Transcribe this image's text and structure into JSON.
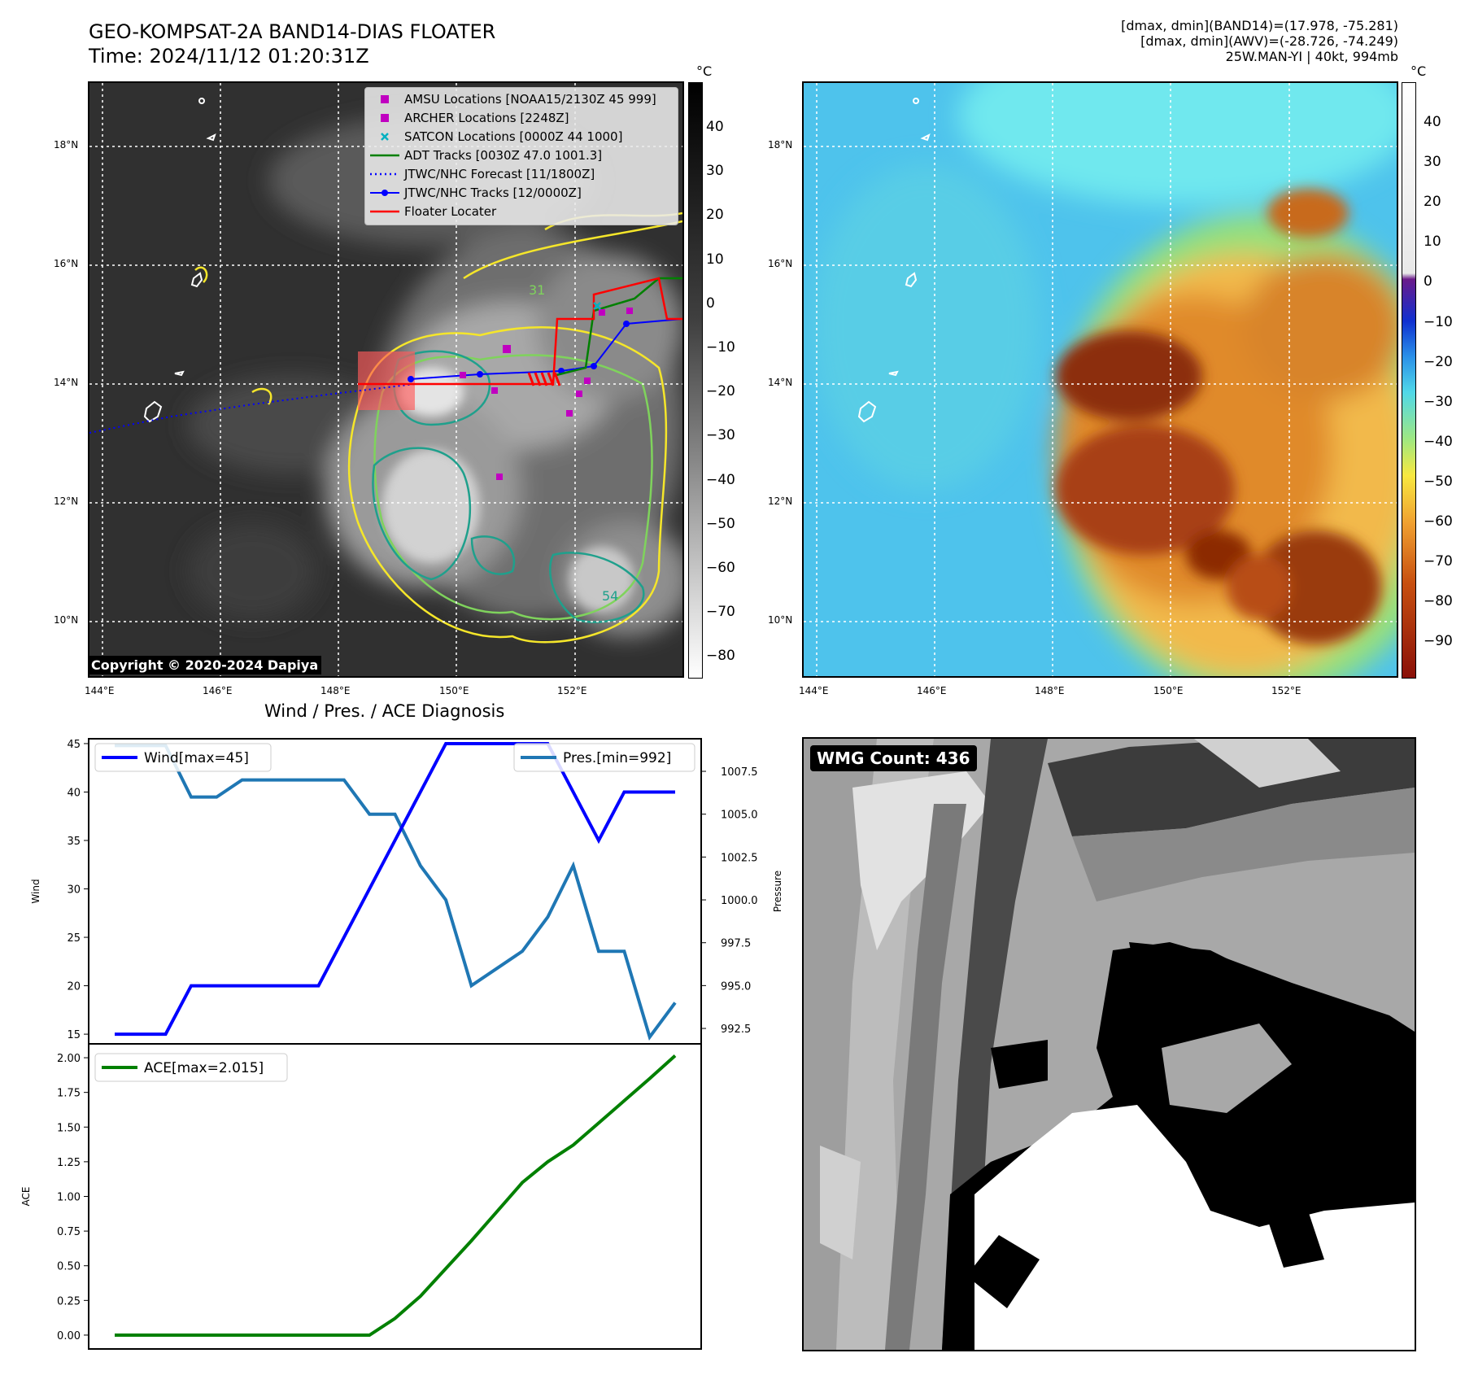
{
  "header": {
    "title_line1": "GEO-KOMPSAT-2A BAND14-DIAS FLOATER",
    "title_line2": "Time: 2024/11/12 01:20:31Z",
    "stats_line1": "[dmax, dmin](BAND14)=(17.978, -75.281)",
    "stats_line2": "[dmax, dmin](AWV)=(-28.726, -74.249)",
    "stats_line3": "25W.MAN-YI | 40kt, 994mb"
  },
  "map": {
    "lat_labels": [
      "18°N",
      "16°N",
      "14°N",
      "12°N",
      "10°N"
    ],
    "lon_labels": [
      "144°E",
      "146°E",
      "148°E",
      "150°E",
      "152°E"
    ],
    "copyright": "Copyright © 2020-2024 Dapiya",
    "contour_labels": [
      "31",
      "54"
    ],
    "legend": [
      {
        "label": "AMSU Locations [NOAA15/2130Z 45 999]",
        "color": "#c000c0",
        "symbol": "square"
      },
      {
        "label": "ARCHER Locations [2248Z]",
        "color": "#c000c0",
        "symbol": "square"
      },
      {
        "label": "SATCON Locations [0000Z 44 1000]",
        "color": "#00b0c0",
        "symbol": "x"
      },
      {
        "label": "ADT Tracks [0030Z 47.0 1001.3]",
        "color": "#008000",
        "symbol": "line"
      },
      {
        "label": "JTWC/NHC Forecast [11/1800Z]",
        "color": "#0000ff",
        "symbol": "dotted"
      },
      {
        "label": "JTWC/NHC Tracks [12/0000Z]",
        "color": "#0000ff",
        "symbol": "dotline"
      },
      {
        "label": "Floater Locater",
        "color": "#ff0000",
        "symbol": "line"
      }
    ]
  },
  "colorbar1": {
    "unit": "°C",
    "ticks": [
      "40",
      "30",
      "20",
      "10",
      "0",
      "−10",
      "−20",
      "−30",
      "−40",
      "−50",
      "−60",
      "−70",
      "−80"
    ]
  },
  "colorbar2": {
    "unit": "°C",
    "ticks": [
      "40",
      "30",
      "20",
      "10",
      "0",
      "−10",
      "−20",
      "−30",
      "−40",
      "−50",
      "−60",
      "−70",
      "−80",
      "−90"
    ]
  },
  "chart_data": [
    {
      "type": "line",
      "title": "Wind / Pres. / ACE Diagnosis",
      "ylabel": "Wind",
      "ylabel_right": "Pressure",
      "ylim": [
        14,
        45.5
      ],
      "ylim_right": [
        991.6,
        1009.4
      ],
      "yticks": [
        15,
        20,
        25,
        30,
        35,
        40,
        45
      ],
      "yticks_right": [
        "992.5",
        "995.0",
        "997.5",
        "1000.0",
        "1002.5",
        "1005.0",
        "1007.5"
      ],
      "x": [
        0,
        1,
        2,
        3,
        4,
        5,
        6,
        7,
        8,
        9,
        10,
        11,
        12,
        13,
        14,
        15,
        16,
        17,
        18,
        19,
        20,
        21,
        22
      ],
      "series": [
        {
          "name": "Wind[max=45]",
          "axis": "left",
          "color": "#0000ff",
          "values": [
            15,
            15,
            15,
            20,
            20,
            20,
            20,
            20,
            20,
            25,
            30,
            35,
            40,
            45,
            45,
            45,
            45,
            45,
            40,
            35,
            40,
            40,
            40
          ]
        },
        {
          "name": "Pres.[min=992]",
          "axis": "right",
          "color": "#1f77b4",
          "values": [
            1009,
            1009,
            1009,
            1006,
            1006,
            1007,
            1007,
            1007,
            1007,
            1007,
            1005,
            1005,
            1002,
            1000,
            995,
            996,
            997,
            999,
            1002,
            997,
            997,
            992,
            994
          ]
        }
      ]
    },
    {
      "type": "line",
      "ylabel": "ACE",
      "ylim": [
        -0.1,
        2.1
      ],
      "yticks": [
        "0.00",
        "0.25",
        "0.50",
        "0.75",
        "1.00",
        "1.25",
        "1.50",
        "1.75",
        "2.00"
      ],
      "x": [
        0,
        1,
        2,
        3,
        4,
        5,
        6,
        7,
        8,
        9,
        10,
        11,
        12,
        13,
        14,
        15,
        16,
        17,
        18,
        19,
        20,
        21,
        22
      ],
      "series": [
        {
          "name": "ACE[max=2.015]",
          "color": "#008000",
          "values": [
            0,
            0,
            0,
            0,
            0,
            0,
            0,
            0,
            0,
            0,
            0.0,
            0.12,
            0.28,
            0.48,
            0.68,
            0.89,
            1.1,
            1.25,
            1.37,
            1.53,
            1.69,
            1.85,
            2.015
          ]
        }
      ]
    }
  ],
  "wmg": {
    "label": "WMG Count: 436"
  }
}
